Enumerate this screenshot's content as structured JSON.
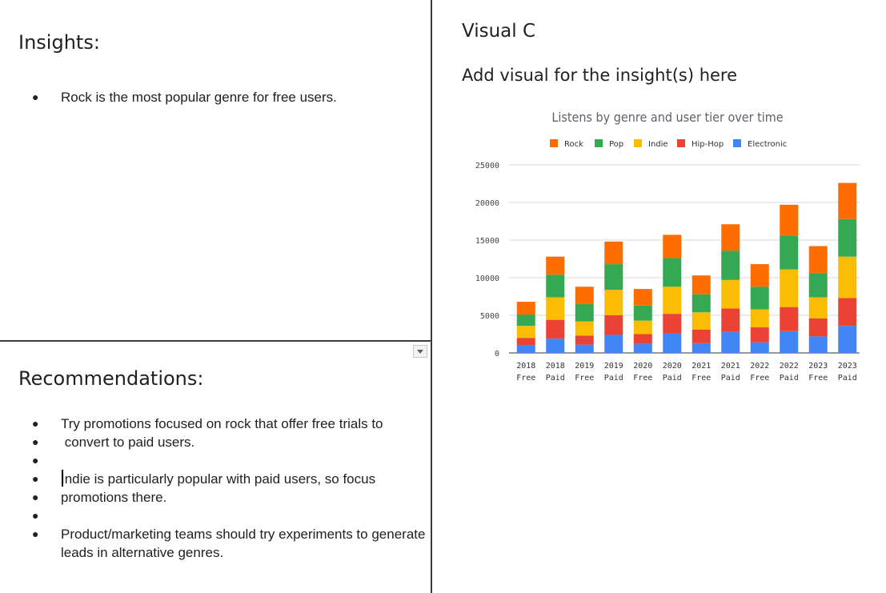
{
  "insights": {
    "title": "Insights:",
    "bullets": [
      "Rock is the most popular genre for free users."
    ]
  },
  "recommendations": {
    "title": "Recommendations:",
    "bullets": [
      "Try promotions focused on rock that offer free trials to",
      " convert to paid users.",
      "",
      "Indie is particularly popular with paid users, so focus",
      "promotions there.",
      "",
      "Product/marketing teams should try experiments to generate",
      "leads in alternative genres."
    ]
  },
  "visual": {
    "title": "Visual C",
    "subtitle": "Add visual for the insight(s) here"
  },
  "chart_data": {
    "type": "bar",
    "stacked": true,
    "title": "Listens by genre and user tier over time",
    "xlabel": "",
    "ylabel": "",
    "ylim": [
      0,
      25000
    ],
    "yticks": [
      0,
      5000,
      10000,
      15000,
      20000,
      25000
    ],
    "grid": true,
    "legend_position": "top",
    "categories": [
      [
        "2018",
        "Free"
      ],
      [
        "2018",
        "Paid"
      ],
      [
        "2019",
        "Free"
      ],
      [
        "2019",
        "Paid"
      ],
      [
        "2020",
        "Free"
      ],
      [
        "2020",
        "Paid"
      ],
      [
        "2021",
        "Free"
      ],
      [
        "2021",
        "Paid"
      ],
      [
        "2022",
        "Free"
      ],
      [
        "2022",
        "Paid"
      ],
      [
        "2023",
        "Free"
      ],
      [
        "2023",
        "Paid"
      ]
    ],
    "series": [
      {
        "name": "Rock",
        "color": "#ff6d01",
        "values": [
          1700,
          2400,
          2300,
          3000,
          2200,
          3100,
          2500,
          3500,
          3000,
          4100,
          3600,
          4800
        ]
      },
      {
        "name": "Pop",
        "color": "#34a853",
        "values": [
          1500,
          3000,
          2300,
          3400,
          2000,
          3800,
          2400,
          3900,
          3000,
          4500,
          3200,
          5000
        ]
      },
      {
        "name": "Indie",
        "color": "#fbbc04",
        "values": [
          1600,
          3000,
          1900,
          3400,
          1800,
          3600,
          2300,
          3800,
          2400,
          5000,
          2800,
          5500
        ]
      },
      {
        "name": "Hip-Hop",
        "color": "#ea4335",
        "values": [
          1000,
          2500,
          1200,
          2600,
          1300,
          2600,
          1800,
          3100,
          2000,
          3200,
          2400,
          3700
        ]
      },
      {
        "name": "Electronic",
        "color": "#4285f4",
        "values": [
          1000,
          1900,
          1100,
          2400,
          1200,
          2600,
          1300,
          2800,
          1400,
          2900,
          2200,
          3600
        ]
      }
    ]
  }
}
